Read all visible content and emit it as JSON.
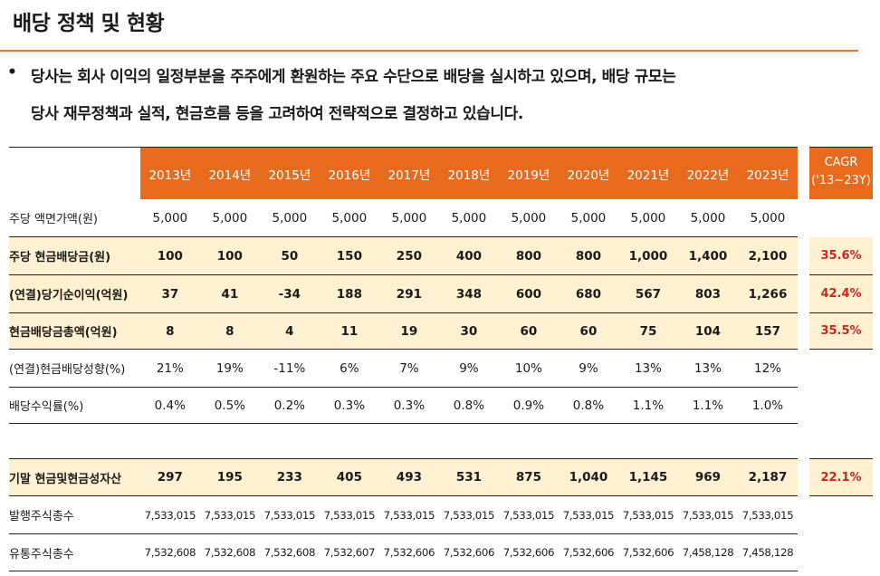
{
  "title": "배당 정책 및 현황",
  "bullet": {
    "dot": "•",
    "line1": "당사는 회사 이익의 일정부분을 주주에게 환원하는 주요 수단으로 배당을 실시하고 있으며, 배당 규모는",
    "line2": "당사 재무정책과 실적, 현금흐름 등을 고려하여 전략적으로 결정하고 있습니다."
  },
  "table": {
    "years": [
      "2013년",
      "2014년",
      "2015년",
      "2016년",
      "2017년",
      "2018년",
      "2019년",
      "2020년",
      "2021년",
      "2022년",
      "2023년"
    ],
    "cagr_header": [
      "CAGR",
      "('13~23Y)"
    ],
    "rows": [
      {
        "label": "주당 액면가액(원)",
        "values": [
          "5,000",
          "5,000",
          "5,000",
          "5,000",
          "5,000",
          "5,000",
          "5,000",
          "5,000",
          "5,000",
          "5,000",
          "5,000"
        ],
        "cagr": ""
      },
      {
        "label": "주당 현금배당금(원)",
        "values": [
          "100",
          "100",
          "50",
          "150",
          "250",
          "400",
          "800",
          "800",
          "1,000",
          "1,400",
          "2,100"
        ],
        "cagr": "35.6%"
      },
      {
        "label": "(연결)당기순이익(억원)",
        "values": [
          "37",
          "41",
          "-34",
          "188",
          "291",
          "348",
          "600",
          "680",
          "567",
          "803",
          "1,266"
        ],
        "cagr": "42.4%"
      },
      {
        "label": "현금배당금총액(억원)",
        "values": [
          "8",
          "8",
          "4",
          "11",
          "19",
          "30",
          "60",
          "60",
          "75",
          "104",
          "157"
        ],
        "cagr": "35.5%"
      },
      {
        "label": "(연결)현금배당성향(%)",
        "values": [
          "21%",
          "19%",
          "-11%",
          "6%",
          "7%",
          "9%",
          "10%",
          "9%",
          "13%",
          "13%",
          "12%"
        ],
        "cagr": ""
      },
      {
        "label": "배당수익률(%)",
        "values": [
          "0.4%",
          "0.5%",
          "0.2%",
          "0.3%",
          "0.3%",
          "0.8%",
          "0.9%",
          "0.8%",
          "1.1%",
          "1.1%",
          "1.0%"
        ],
        "cagr": ""
      },
      {
        "label": "기말 현금및현금성자산",
        "values": [
          "297",
          "195",
          "233",
          "405",
          "493",
          "531",
          "875",
          "1,040",
          "1,145",
          "969",
          "2,187"
        ],
        "cagr": "22.1%"
      },
      {
        "label": "발행주식총수",
        "values": [
          "7,533,015",
          "7,533,015",
          "7,533,015",
          "7,533,015",
          "7,533,015",
          "7,533,015",
          "7,533,015",
          "7,533,015",
          "7,533,015",
          "7,533,015",
          "7,533,015"
        ],
        "cagr": ""
      },
      {
        "label": "유통주식총수",
        "values": [
          "7,532,608",
          "7,532,608",
          "7,532,608",
          "7,532,607",
          "7,532,606",
          "7,532,606",
          "7,532,606",
          "7,532,606",
          "7,532,606",
          "7,458,128",
          "7,458,128"
        ],
        "cagr": ""
      }
    ]
  },
  "colors": {
    "header_bg": "#e86a1c",
    "highlight_bg": "#fdf1d2",
    "cagr_text": "#d4241a",
    "rule": "#e8742a"
  }
}
